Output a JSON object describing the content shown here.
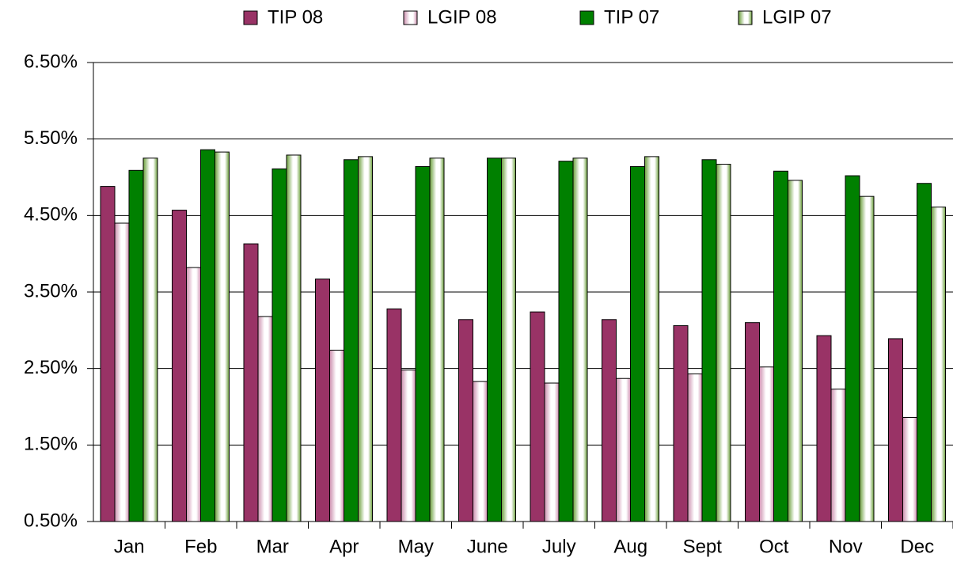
{
  "chart_data": {
    "type": "bar",
    "categories": [
      "Jan",
      "Feb",
      "Mar",
      "Apr",
      "May",
      "June",
      "July",
      "Aug",
      "Sept",
      "Oct",
      "Nov",
      "Dec"
    ],
    "series": [
      {
        "name": "TIP 08",
        "color": "#993366",
        "pattern": "solid",
        "values": [
          4.88,
          4.57,
          4.13,
          3.67,
          3.28,
          3.14,
          3.24,
          3.14,
          3.06,
          3.1,
          2.93,
          2.89
        ]
      },
      {
        "name": "LGIP 08",
        "color": "#cc8fae",
        "pattern": "striped",
        "values": [
          4.4,
          3.82,
          3.18,
          2.74,
          2.48,
          2.33,
          2.31,
          2.37,
          2.43,
          2.52,
          2.23,
          1.86
        ]
      },
      {
        "name": "TIP 07",
        "color": "#008000",
        "pattern": "solid",
        "values": [
          5.09,
          5.36,
          5.11,
          5.23,
          5.14,
          5.25,
          5.21,
          5.14,
          5.23,
          5.08,
          5.02,
          4.92
        ]
      },
      {
        "name": "LGIP 07",
        "color": "#6a9e3a",
        "pattern": "striped",
        "values": [
          5.25,
          5.33,
          5.29,
          5.27,
          5.25,
          5.25,
          5.25,
          5.27,
          5.17,
          4.96,
          4.75,
          4.61
        ]
      }
    ],
    "ylim": [
      0.5,
      6.5
    ],
    "yticks": [
      {
        "value": 0.5,
        "label": "0.50%"
      },
      {
        "value": 1.5,
        "label": "1.50%"
      },
      {
        "value": 2.5,
        "label": "2.50%"
      },
      {
        "value": 3.5,
        "label": "3.50%"
      },
      {
        "value": 4.5,
        "label": "4.50%"
      },
      {
        "value": 5.5,
        "label": "5.50%"
      },
      {
        "value": 6.5,
        "label": "6.50%"
      }
    ],
    "grid": true,
    "legend": "top"
  }
}
